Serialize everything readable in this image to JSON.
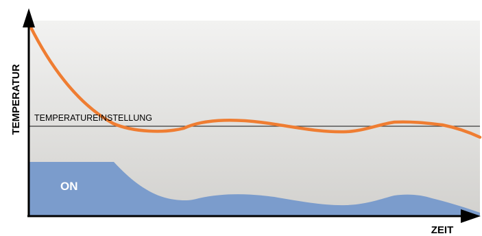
{
  "diagram": {
    "y_axis_label": "TEMPERATUR",
    "x_axis_label": "ZEIT",
    "setpoint_label": "TEMPERATUREINSTELLUNG",
    "heater_state_label": "ON"
  },
  "colors": {
    "background_top": "#f2f2f1",
    "background_bottom": "#d2d1ce",
    "temperature_curve": "#ef7d32",
    "heater_area": "#7b9ccc",
    "setpoint_line": "#3a3a3a",
    "axes": "#000000"
  }
}
